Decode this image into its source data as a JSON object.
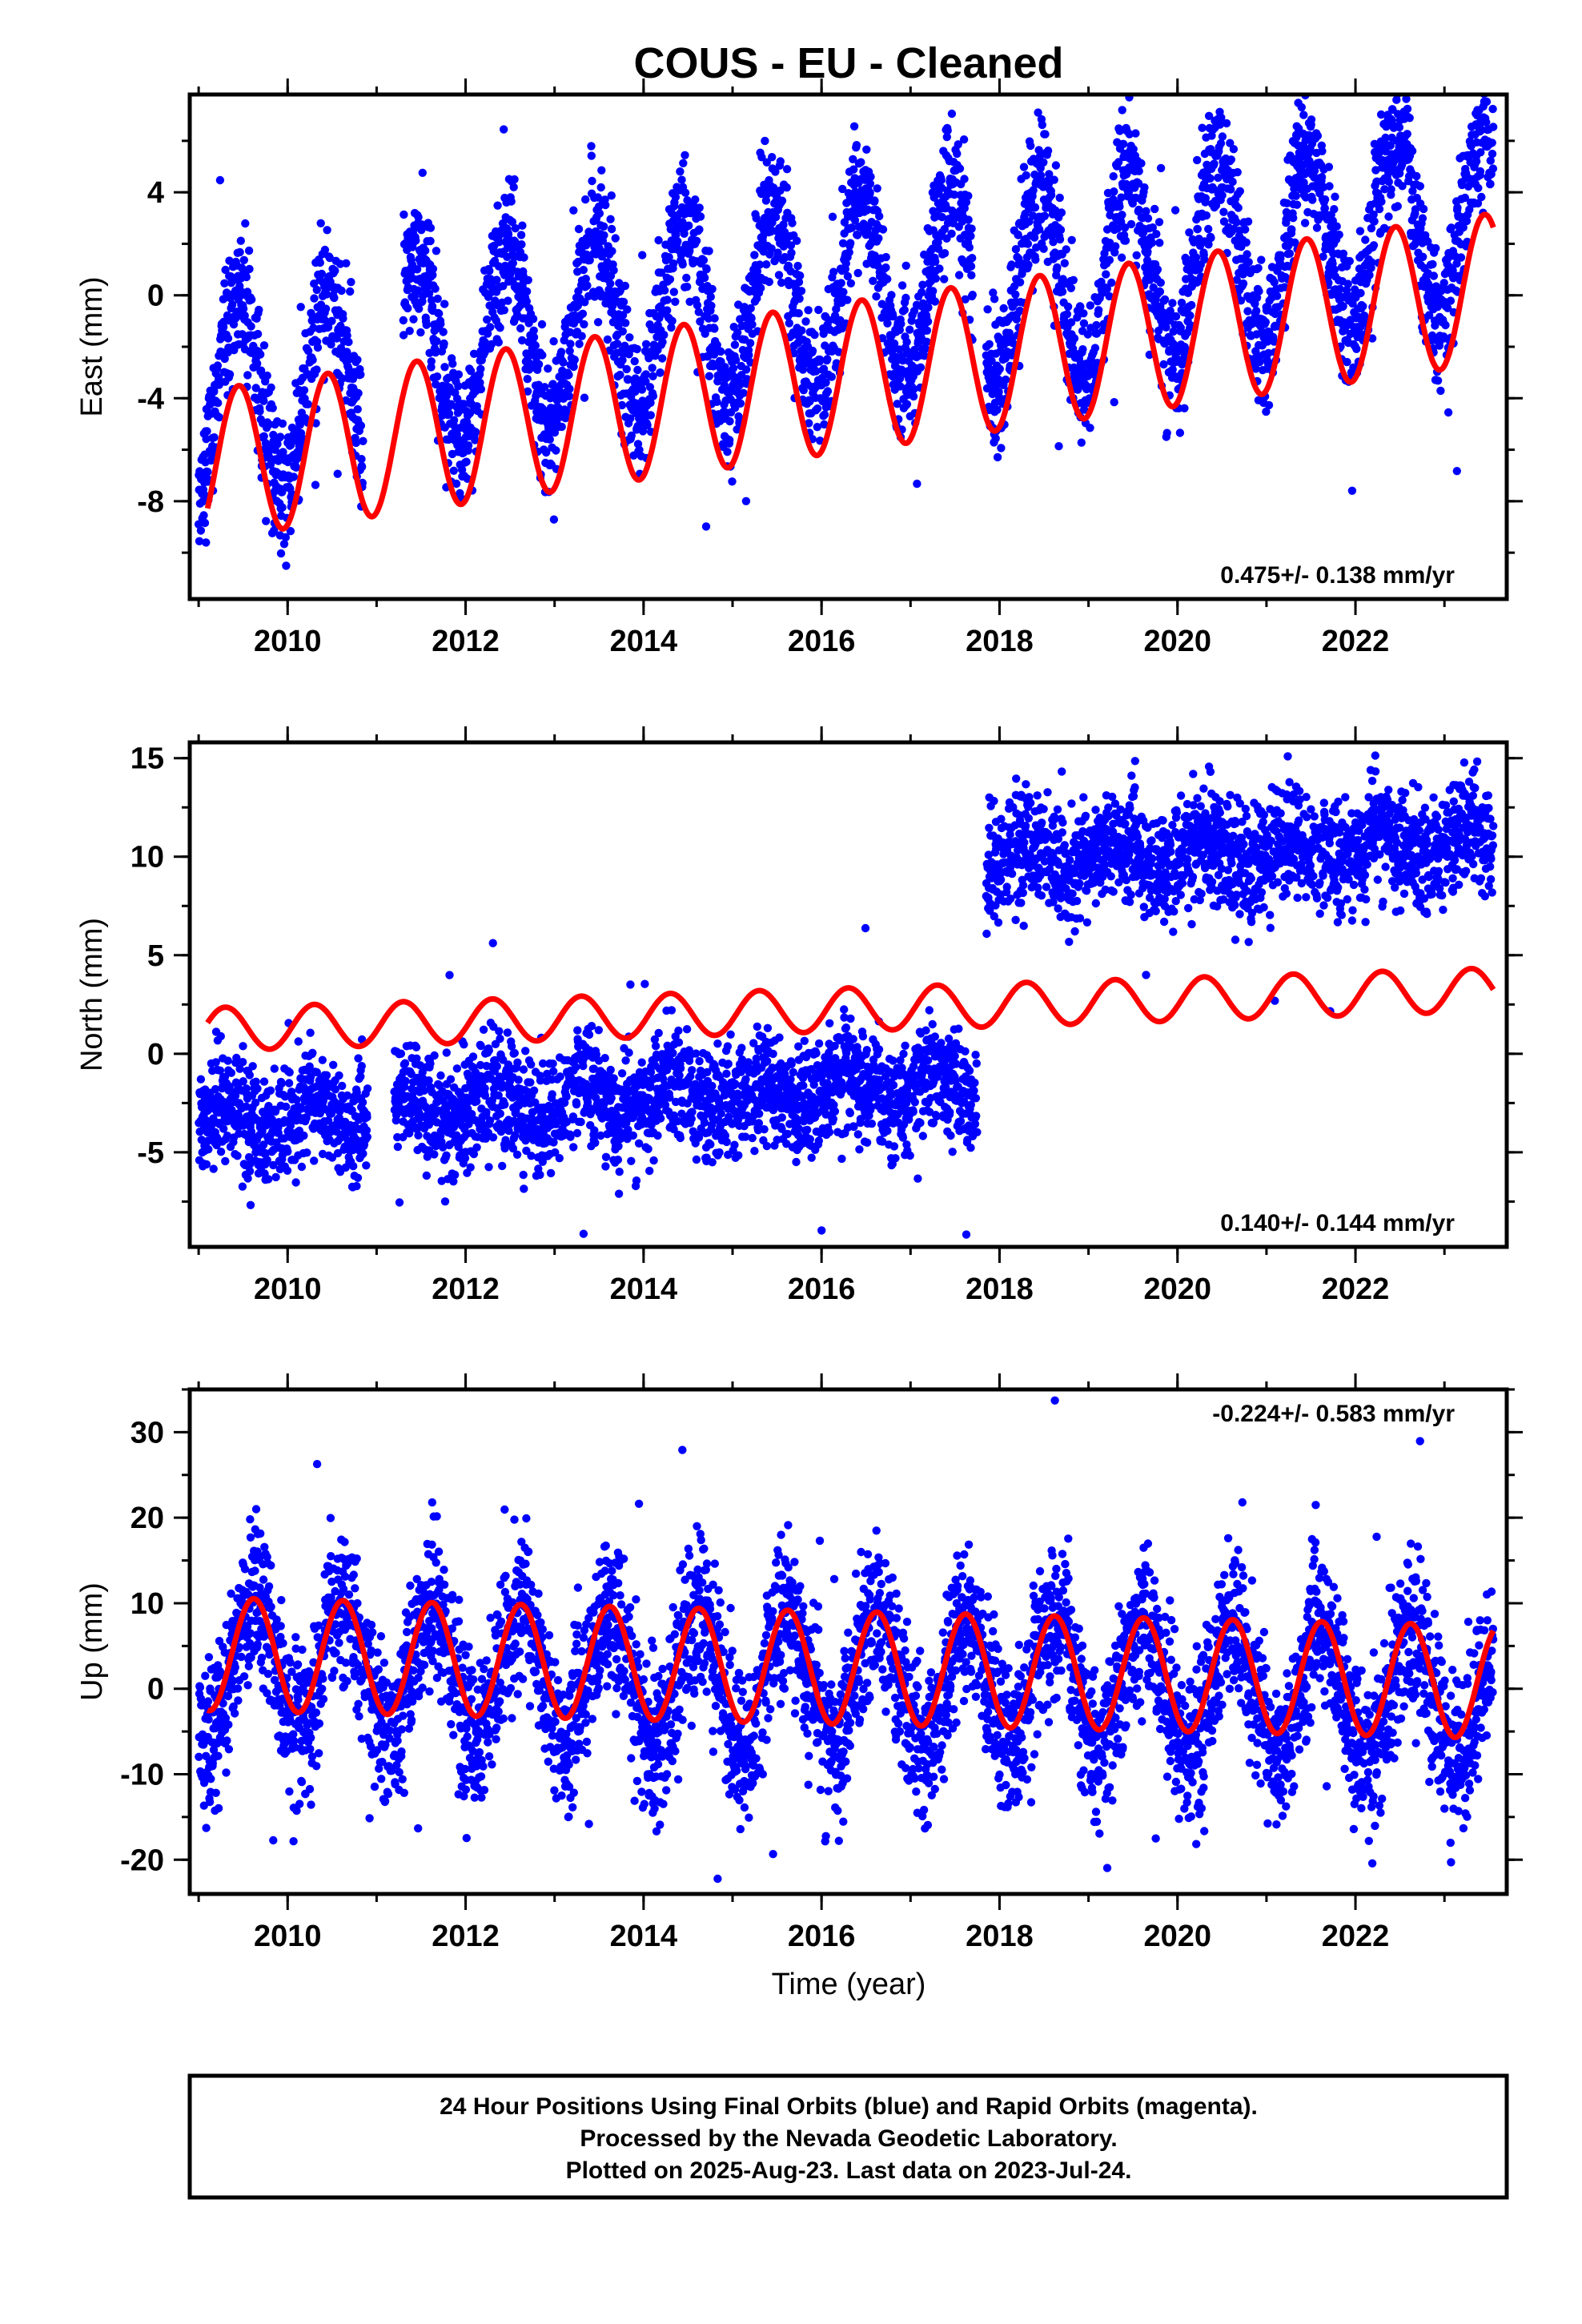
{
  "chart_data": {
    "type": "scatter",
    "title": "COUS  - EU - Cleaned",
    "xlabel": "Time (year)",
    "x_ticks": [
      2010,
      2012,
      2014,
      2016,
      2018,
      2020,
      2022
    ],
    "x_tick_labels": [
      "2010",
      "2012",
      "2014",
      "2016",
      "2018",
      "2020",
      "2022"
    ],
    "xlim": [
      2008.9,
      2023.7
    ],
    "colors": {
      "data": "#0000ff",
      "model": "#ff0000",
      "frame": "#000000"
    },
    "legend": "none",
    "grid": false,
    "panels": [
      {
        "component": "east",
        "ylabel": "East (mm)",
        "ylim": [
          -11.8,
          7.8
        ],
        "y_ticks": [
          4,
          0,
          -4,
          -8
        ],
        "y_tick_labels": [
          "4",
          "0",
          "-4",
          "-8"
        ],
        "rate_label": "0.475+/- 0.138 mm/yr",
        "rate_position": "bottom-right",
        "model": {
          "trend_mm_per_yr": 0.475,
          "offset": -3.3,
          "annual_amplitude": 2.9,
          "annual_peak_year_fraction": 0.45,
          "break_year": 2017.8,
          "break_offset": 0
        },
        "data": {
          "segments": [
            [
              2009.0,
              2010.85
            ],
            [
              2011.3,
              2017.7
            ],
            [
              2017.85,
              2023.55
            ]
          ],
          "scatter_mm": 1.3,
          "offset_by_segment": [
            -0.8,
            0.0,
            -0.6
          ],
          "annual_amplitude": 3.6
        }
      },
      {
        "component": "north",
        "ylabel": "North (mm)",
        "ylim": [
          -9.8,
          15.8
        ],
        "y_ticks": [
          15,
          10,
          5,
          0,
          -5
        ],
        "y_tick_labels": [
          "15",
          "10",
          "5",
          "0",
          "-5"
        ],
        "rate_label": "0.140+/- 0.144 mm/yr",
        "rate_position": "bottom-right",
        "model": {
          "trend_mm_per_yr": 0.14,
          "offset": 2.2,
          "annual_amplitude": 1.1,
          "annual_peak_year_fraction": 0.3,
          "break_year": 2017.8,
          "break_offset": 0
        },
        "data": {
          "segments": [
            [
              2009.0,
              2010.9
            ],
            [
              2011.2,
              2017.75
            ],
            [
              2017.85,
              2023.55
            ]
          ],
          "scatter_mm": 1.4,
          "offset_by_segment": [
            -2.4,
            -2.0,
            9.6
          ],
          "annual_amplitude": 0.8
        }
      },
      {
        "component": "up",
        "ylabel": "Up (mm)",
        "ylim": [
          -24,
          35
        ],
        "y_ticks": [
          30,
          20,
          10,
          0,
          -10,
          -20
        ],
        "y_tick_labels": [
          "30",
          "20",
          "10",
          "0",
          "-10",
          "-20"
        ],
        "rate_label": "-0.224+/- 0.583 mm/yr",
        "rate_position": "top-right",
        "model": {
          "trend_mm_per_yr": -0.224,
          "offset": 2.5,
          "annual_amplitude": 6.6,
          "annual_peak_year_fraction": 0.62,
          "break_year": 2017.8,
          "break_offset": 0
        },
        "data": {
          "segments": [
            [
              2009.0,
              2023.55
            ]
          ],
          "scatter_mm": 4.5,
          "offset_by_segment": [
            1.0
          ],
          "annual_amplitude": 7.5
        }
      }
    ]
  },
  "footer": {
    "line1": "24 Hour Positions Using Final Orbits (blue) and Rapid Orbits (magenta).",
    "line2": "Processed by the Nevada Geodetic Laboratory.",
    "line3": "Plotted on 2025-Aug-23. Last data on 2023-Jul-24."
  }
}
